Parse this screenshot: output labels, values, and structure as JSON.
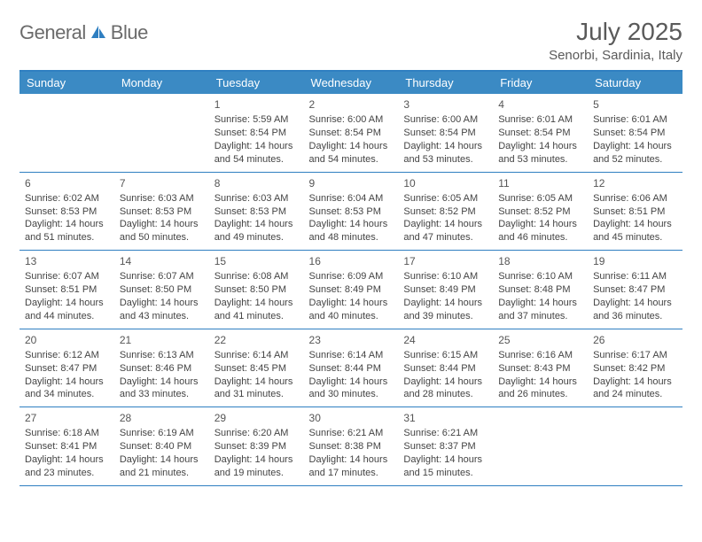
{
  "logo": {
    "text_a": "General",
    "text_b": "Blue"
  },
  "title": "July 2025",
  "subtitle": "Senorbi, Sardinia, Italy",
  "colors": {
    "header_bg": "#3b8ac4",
    "accent": "#2f7fc1",
    "text": "#444444",
    "title_text": "#5a5a5a"
  },
  "day_labels": [
    "Sunday",
    "Monday",
    "Tuesday",
    "Wednesday",
    "Thursday",
    "Friday",
    "Saturday"
  ],
  "weeks": [
    [
      null,
      null,
      {
        "n": "1",
        "sunrise": "5:59 AM",
        "sunset": "8:54 PM",
        "daylight": "14 hours and 54 minutes."
      },
      {
        "n": "2",
        "sunrise": "6:00 AM",
        "sunset": "8:54 PM",
        "daylight": "14 hours and 54 minutes."
      },
      {
        "n": "3",
        "sunrise": "6:00 AM",
        "sunset": "8:54 PM",
        "daylight": "14 hours and 53 minutes."
      },
      {
        "n": "4",
        "sunrise": "6:01 AM",
        "sunset": "8:54 PM",
        "daylight": "14 hours and 53 minutes."
      },
      {
        "n": "5",
        "sunrise": "6:01 AM",
        "sunset": "8:54 PM",
        "daylight": "14 hours and 52 minutes."
      }
    ],
    [
      {
        "n": "6",
        "sunrise": "6:02 AM",
        "sunset": "8:53 PM",
        "daylight": "14 hours and 51 minutes."
      },
      {
        "n": "7",
        "sunrise": "6:03 AM",
        "sunset": "8:53 PM",
        "daylight": "14 hours and 50 minutes."
      },
      {
        "n": "8",
        "sunrise": "6:03 AM",
        "sunset": "8:53 PM",
        "daylight": "14 hours and 49 minutes."
      },
      {
        "n": "9",
        "sunrise": "6:04 AM",
        "sunset": "8:53 PM",
        "daylight": "14 hours and 48 minutes."
      },
      {
        "n": "10",
        "sunrise": "6:05 AM",
        "sunset": "8:52 PM",
        "daylight": "14 hours and 47 minutes."
      },
      {
        "n": "11",
        "sunrise": "6:05 AM",
        "sunset": "8:52 PM",
        "daylight": "14 hours and 46 minutes."
      },
      {
        "n": "12",
        "sunrise": "6:06 AM",
        "sunset": "8:51 PM",
        "daylight": "14 hours and 45 minutes."
      }
    ],
    [
      {
        "n": "13",
        "sunrise": "6:07 AM",
        "sunset": "8:51 PM",
        "daylight": "14 hours and 44 minutes."
      },
      {
        "n": "14",
        "sunrise": "6:07 AM",
        "sunset": "8:50 PM",
        "daylight": "14 hours and 43 minutes."
      },
      {
        "n": "15",
        "sunrise": "6:08 AM",
        "sunset": "8:50 PM",
        "daylight": "14 hours and 41 minutes."
      },
      {
        "n": "16",
        "sunrise": "6:09 AM",
        "sunset": "8:49 PM",
        "daylight": "14 hours and 40 minutes."
      },
      {
        "n": "17",
        "sunrise": "6:10 AM",
        "sunset": "8:49 PM",
        "daylight": "14 hours and 39 minutes."
      },
      {
        "n": "18",
        "sunrise": "6:10 AM",
        "sunset": "8:48 PM",
        "daylight": "14 hours and 37 minutes."
      },
      {
        "n": "19",
        "sunrise": "6:11 AM",
        "sunset": "8:47 PM",
        "daylight": "14 hours and 36 minutes."
      }
    ],
    [
      {
        "n": "20",
        "sunrise": "6:12 AM",
        "sunset": "8:47 PM",
        "daylight": "14 hours and 34 minutes."
      },
      {
        "n": "21",
        "sunrise": "6:13 AM",
        "sunset": "8:46 PM",
        "daylight": "14 hours and 33 minutes."
      },
      {
        "n": "22",
        "sunrise": "6:14 AM",
        "sunset": "8:45 PM",
        "daylight": "14 hours and 31 minutes."
      },
      {
        "n": "23",
        "sunrise": "6:14 AM",
        "sunset": "8:44 PM",
        "daylight": "14 hours and 30 minutes."
      },
      {
        "n": "24",
        "sunrise": "6:15 AM",
        "sunset": "8:44 PM",
        "daylight": "14 hours and 28 minutes."
      },
      {
        "n": "25",
        "sunrise": "6:16 AM",
        "sunset": "8:43 PM",
        "daylight": "14 hours and 26 minutes."
      },
      {
        "n": "26",
        "sunrise": "6:17 AM",
        "sunset": "8:42 PM",
        "daylight": "14 hours and 24 minutes."
      }
    ],
    [
      {
        "n": "27",
        "sunrise": "6:18 AM",
        "sunset": "8:41 PM",
        "daylight": "14 hours and 23 minutes."
      },
      {
        "n": "28",
        "sunrise": "6:19 AM",
        "sunset": "8:40 PM",
        "daylight": "14 hours and 21 minutes."
      },
      {
        "n": "29",
        "sunrise": "6:20 AM",
        "sunset": "8:39 PM",
        "daylight": "14 hours and 19 minutes."
      },
      {
        "n": "30",
        "sunrise": "6:21 AM",
        "sunset": "8:38 PM",
        "daylight": "14 hours and 17 minutes."
      },
      {
        "n": "31",
        "sunrise": "6:21 AM",
        "sunset": "8:37 PM",
        "daylight": "14 hours and 15 minutes."
      },
      null,
      null
    ]
  ],
  "labels": {
    "sunrise": "Sunrise:",
    "sunset": "Sunset:",
    "daylight": "Daylight:"
  }
}
